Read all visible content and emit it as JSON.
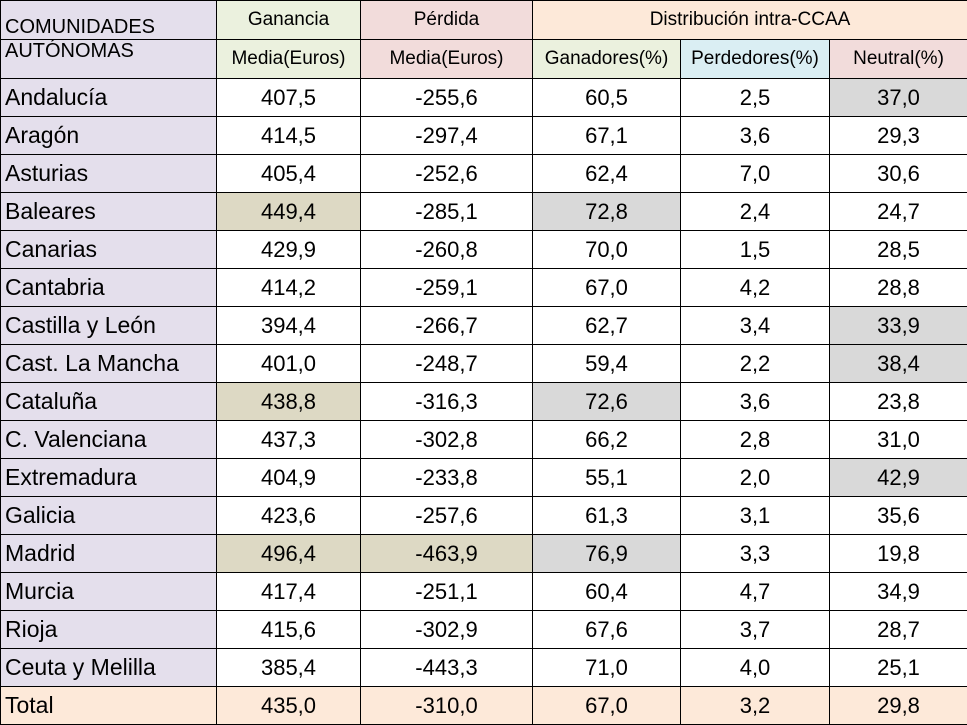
{
  "headers": {
    "region_line1": "COMUNIDADES",
    "region_line2": "AUTÓNOMAS",
    "gain_line1": "Ganancia",
    "gain_line2": "Media(Euros)",
    "loss_line1": "Pérdida",
    "loss_line2": "Media(Euros)",
    "distribution": "Distribución intra-CCAA",
    "winners": "Ganadores(%)",
    "losers": "Perdedores(%)",
    "neutral": "Neutral(%)"
  },
  "rows": [
    {
      "region": "Andalucía",
      "gain": "407,5",
      "loss": "-255,6",
      "winners": "60,5",
      "losers": "2,5",
      "neutral": "37,0"
    },
    {
      "region": "Aragón",
      "gain": "414,5",
      "loss": "-297,4",
      "winners": "67,1",
      "losers": "3,6",
      "neutral": "29,3"
    },
    {
      "region": "Asturias",
      "gain": "405,4",
      "loss": "-252,6",
      "winners": "62,4",
      "losers": "7,0",
      "neutral": "30,6"
    },
    {
      "region": "Baleares",
      "gain": "449,4",
      "loss": "-285,1",
      "winners": "72,8",
      "losers": "2,4",
      "neutral": "24,7"
    },
    {
      "region": "Canarias",
      "gain": "429,9",
      "loss": "-260,8",
      "winners": "70,0",
      "losers": "1,5",
      "neutral": "28,5"
    },
    {
      "region": "Cantabria",
      "gain": "414,2",
      "loss": "-259,1",
      "winners": "67,0",
      "losers": "4,2",
      "neutral": "28,8"
    },
    {
      "region": "Castilla y León",
      "gain": "394,4",
      "loss": "-266,7",
      "winners": "62,7",
      "losers": "3,4",
      "neutral": "33,9"
    },
    {
      "region": "Cast. La Mancha",
      "gain": "401,0",
      "loss": "-248,7",
      "winners": "59,4",
      "losers": "2,2",
      "neutral": "38,4"
    },
    {
      "region": "Cataluña",
      "gain": "438,8",
      "loss": "-316,3",
      "winners": "72,6",
      "losers": "3,6",
      "neutral": "23,8"
    },
    {
      "region": "C. Valenciana",
      "gain": "437,3",
      "loss": "-302,8",
      "winners": "66,2",
      "losers": "2,8",
      "neutral": "31,0"
    },
    {
      "region": "Extremadura",
      "gain": "404,9",
      "loss": "-233,8",
      "winners": "55,1",
      "losers": "2,0",
      "neutral": "42,9"
    },
    {
      "region": "Galicia",
      "gain": "423,6",
      "loss": "-257,6",
      "winners": "61,3",
      "losers": "3,1",
      "neutral": "35,6"
    },
    {
      "region": "Madrid",
      "gain": "496,4",
      "loss": "-463,9",
      "winners": "76,9",
      "losers": "3,3",
      "neutral": "19,8"
    },
    {
      "region": "Murcia",
      "gain": "417,4",
      "loss": "-251,1",
      "winners": "60,4",
      "losers": "4,7",
      "neutral": "34,9"
    },
    {
      "region": "Rioja",
      "gain": "415,6",
      "loss": "-302,9",
      "winners": "67,6",
      "losers": "3,7",
      "neutral": "28,7"
    },
    {
      "region": "Ceuta y Melilla",
      "gain": "385,4",
      "loss": "-443,3",
      "winners": "71,0",
      "losers": "4,0",
      "neutral": "25,1"
    }
  ],
  "total": {
    "region": "Total",
    "gain": "435,0",
    "loss": "-310,0",
    "winners": "67,0",
    "losers": "3,2",
    "neutral": "29,8"
  }
}
